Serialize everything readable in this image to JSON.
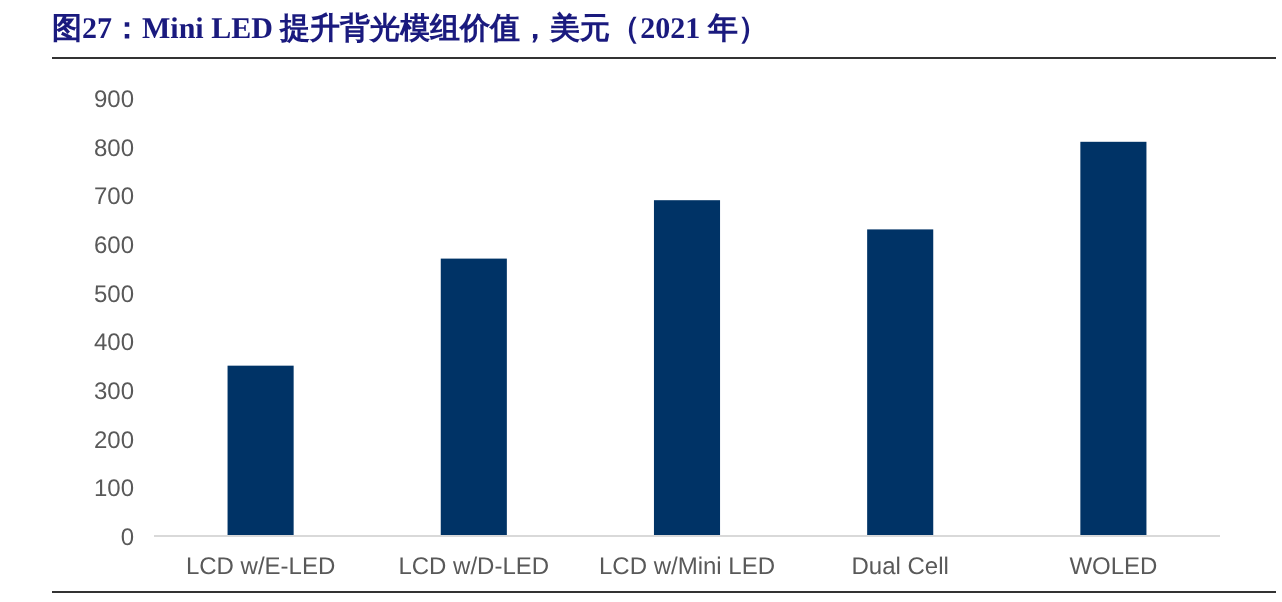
{
  "chart_data": {
    "type": "bar",
    "title": "图27：Mini LED 提升背光模组价值，美元（2021 年）",
    "categories": [
      "LCD w/E-LED",
      "LCD w/D-LED",
      "LCD w/Mini LED",
      "Dual Cell",
      "WOLED"
    ],
    "values": [
      350,
      570,
      690,
      630,
      810
    ],
    "color": "#003366",
    "ylim": [
      0,
      900
    ],
    "yticks": [
      0,
      100,
      200,
      300,
      400,
      500,
      600,
      700,
      800,
      900
    ],
    "grid": false
  }
}
